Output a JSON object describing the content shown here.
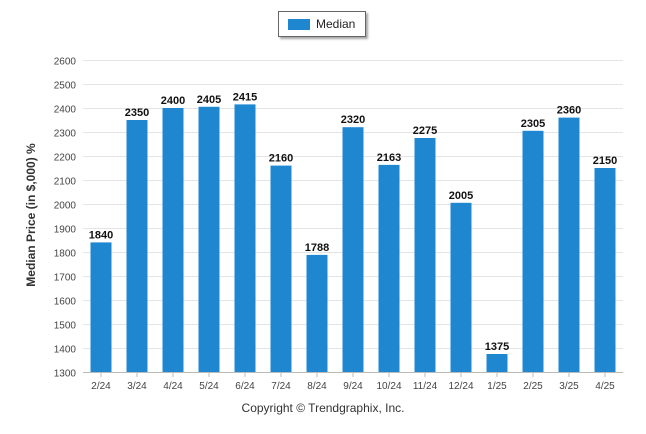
{
  "chart_data": {
    "type": "bar",
    "categories": [
      "2/24",
      "3/24",
      "4/24",
      "5/24",
      "6/24",
      "7/24",
      "8/24",
      "9/24",
      "10/24",
      "11/24",
      "12/24",
      "1/25",
      "2/25",
      "3/25",
      "4/25"
    ],
    "series": [
      {
        "name": "Median",
        "values": [
          1840,
          2350,
          2400,
          2405,
          2415,
          2160,
          1788,
          2320,
          2163,
          2275,
          2005,
          1375,
          2305,
          2360,
          2150
        ]
      }
    ],
    "data_labels": [
      "1840",
      "2350",
      "2400",
      "2405",
      "2415",
      "2160",
      "1788",
      "2320",
      "2163",
      "2275",
      "2005",
      "1375",
      "2305",
      "2360",
      "2150"
    ],
    "yticks": [
      1300,
      1400,
      1500,
      1600,
      1700,
      1800,
      1900,
      2000,
      2100,
      2200,
      2300,
      2400,
      2500,
      2600
    ],
    "ylim": [
      1300,
      2600
    ],
    "ylabel": "Median Price (in $,000) %",
    "xlabel": "",
    "grid": true,
    "legend_position": "top-center",
    "bar_color": "#1f87d0"
  },
  "footer": {
    "copyright": "Copyright © Trendgraphix, Inc."
  }
}
